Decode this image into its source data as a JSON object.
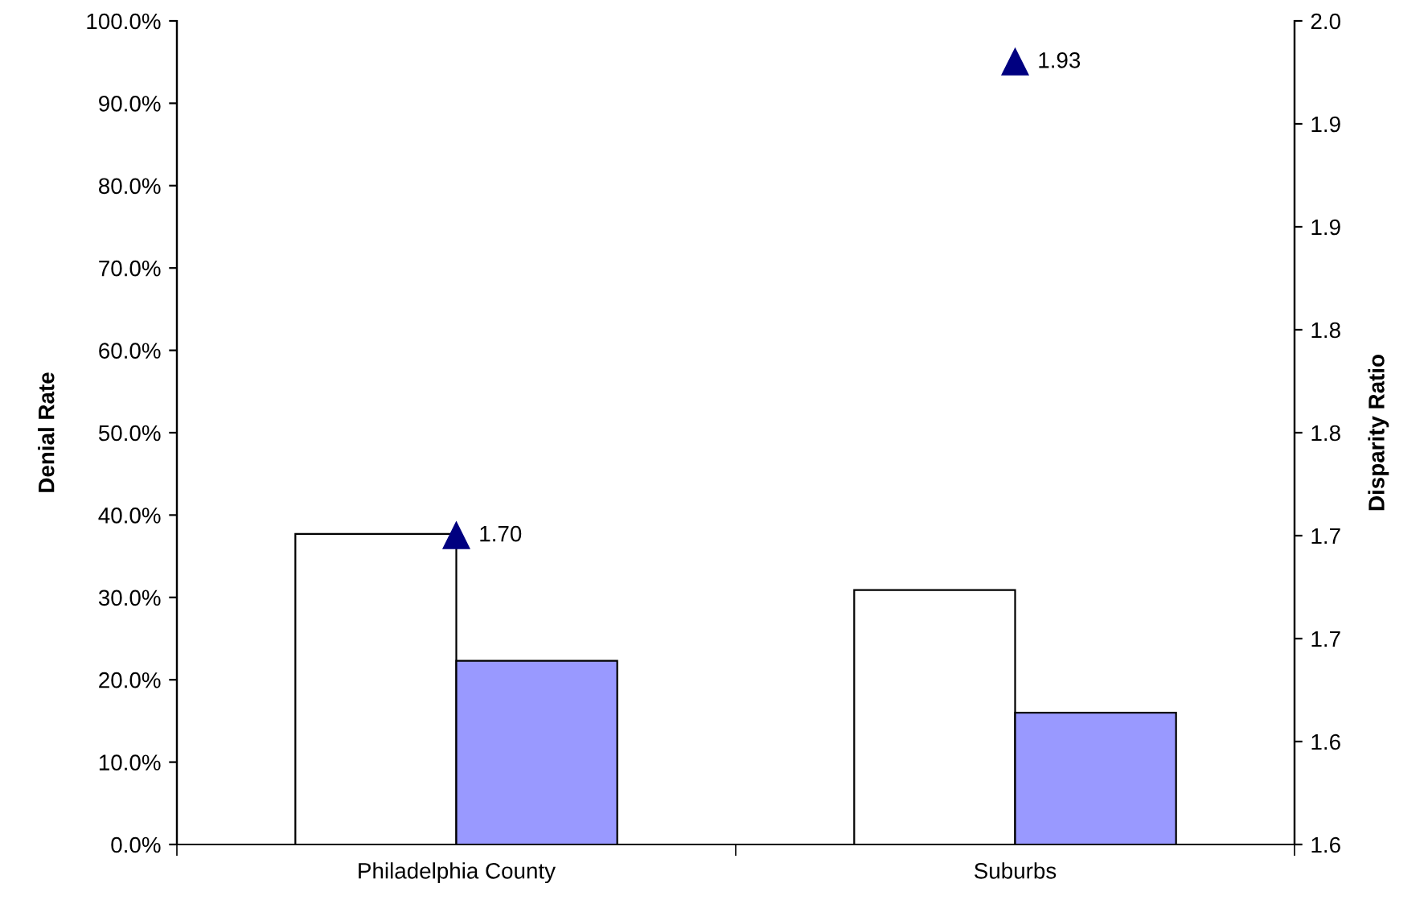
{
  "chart_data": {
    "type": "bar",
    "ylabel": "Denial Rate",
    "y2label": "Disparity Ratio",
    "categories": [
      "Philadelphia County",
      "Suburbs"
    ],
    "series": [
      {
        "color": "#ffffff",
        "values": [
          37.7,
          30.9
        ]
      },
      {
        "color": "#9999ff",
        "values": [
          22.3,
          16.0
        ]
      },
      {
        "type": "scatter",
        "axis": "y2",
        "color": "#000080",
        "marker": "triangle",
        "values": [
          1.7,
          1.93
        ],
        "value_labels": [
          "1.70",
          "1.93"
        ]
      }
    ],
    "ylim": [
      0,
      100
    ],
    "yticks": [
      {
        "value": 0,
        "label": "0.0%"
      },
      {
        "value": 10,
        "label": "10.0%"
      },
      {
        "value": 20,
        "label": "20.0%"
      },
      {
        "value": 30,
        "label": "30.0%"
      },
      {
        "value": 40,
        "label": "40.0%"
      },
      {
        "value": 50,
        "label": "50.0%"
      },
      {
        "value": 60,
        "label": "60.0%"
      },
      {
        "value": 70,
        "label": "70.0%"
      },
      {
        "value": 80,
        "label": "80.0%"
      },
      {
        "value": 90,
        "label": "90.0%"
      },
      {
        "value": 100,
        "label": "100.0%"
      }
    ],
    "y2lim": [
      1.55,
      1.95
    ],
    "y2ticks": [
      {
        "value": 1.55,
        "label": "1.6"
      },
      {
        "value": 1.6,
        "label": "1.6"
      },
      {
        "value": 1.65,
        "label": "1.7"
      },
      {
        "value": 1.7,
        "label": "1.7"
      },
      {
        "value": 1.75,
        "label": "1.8"
      },
      {
        "value": 1.8,
        "label": "1.8"
      },
      {
        "value": 1.85,
        "label": "1.9"
      },
      {
        "value": 1.9,
        "label": "1.9"
      },
      {
        "value": 1.95,
        "label": "2.0"
      }
    ],
    "grid": false,
    "legend": false
  }
}
